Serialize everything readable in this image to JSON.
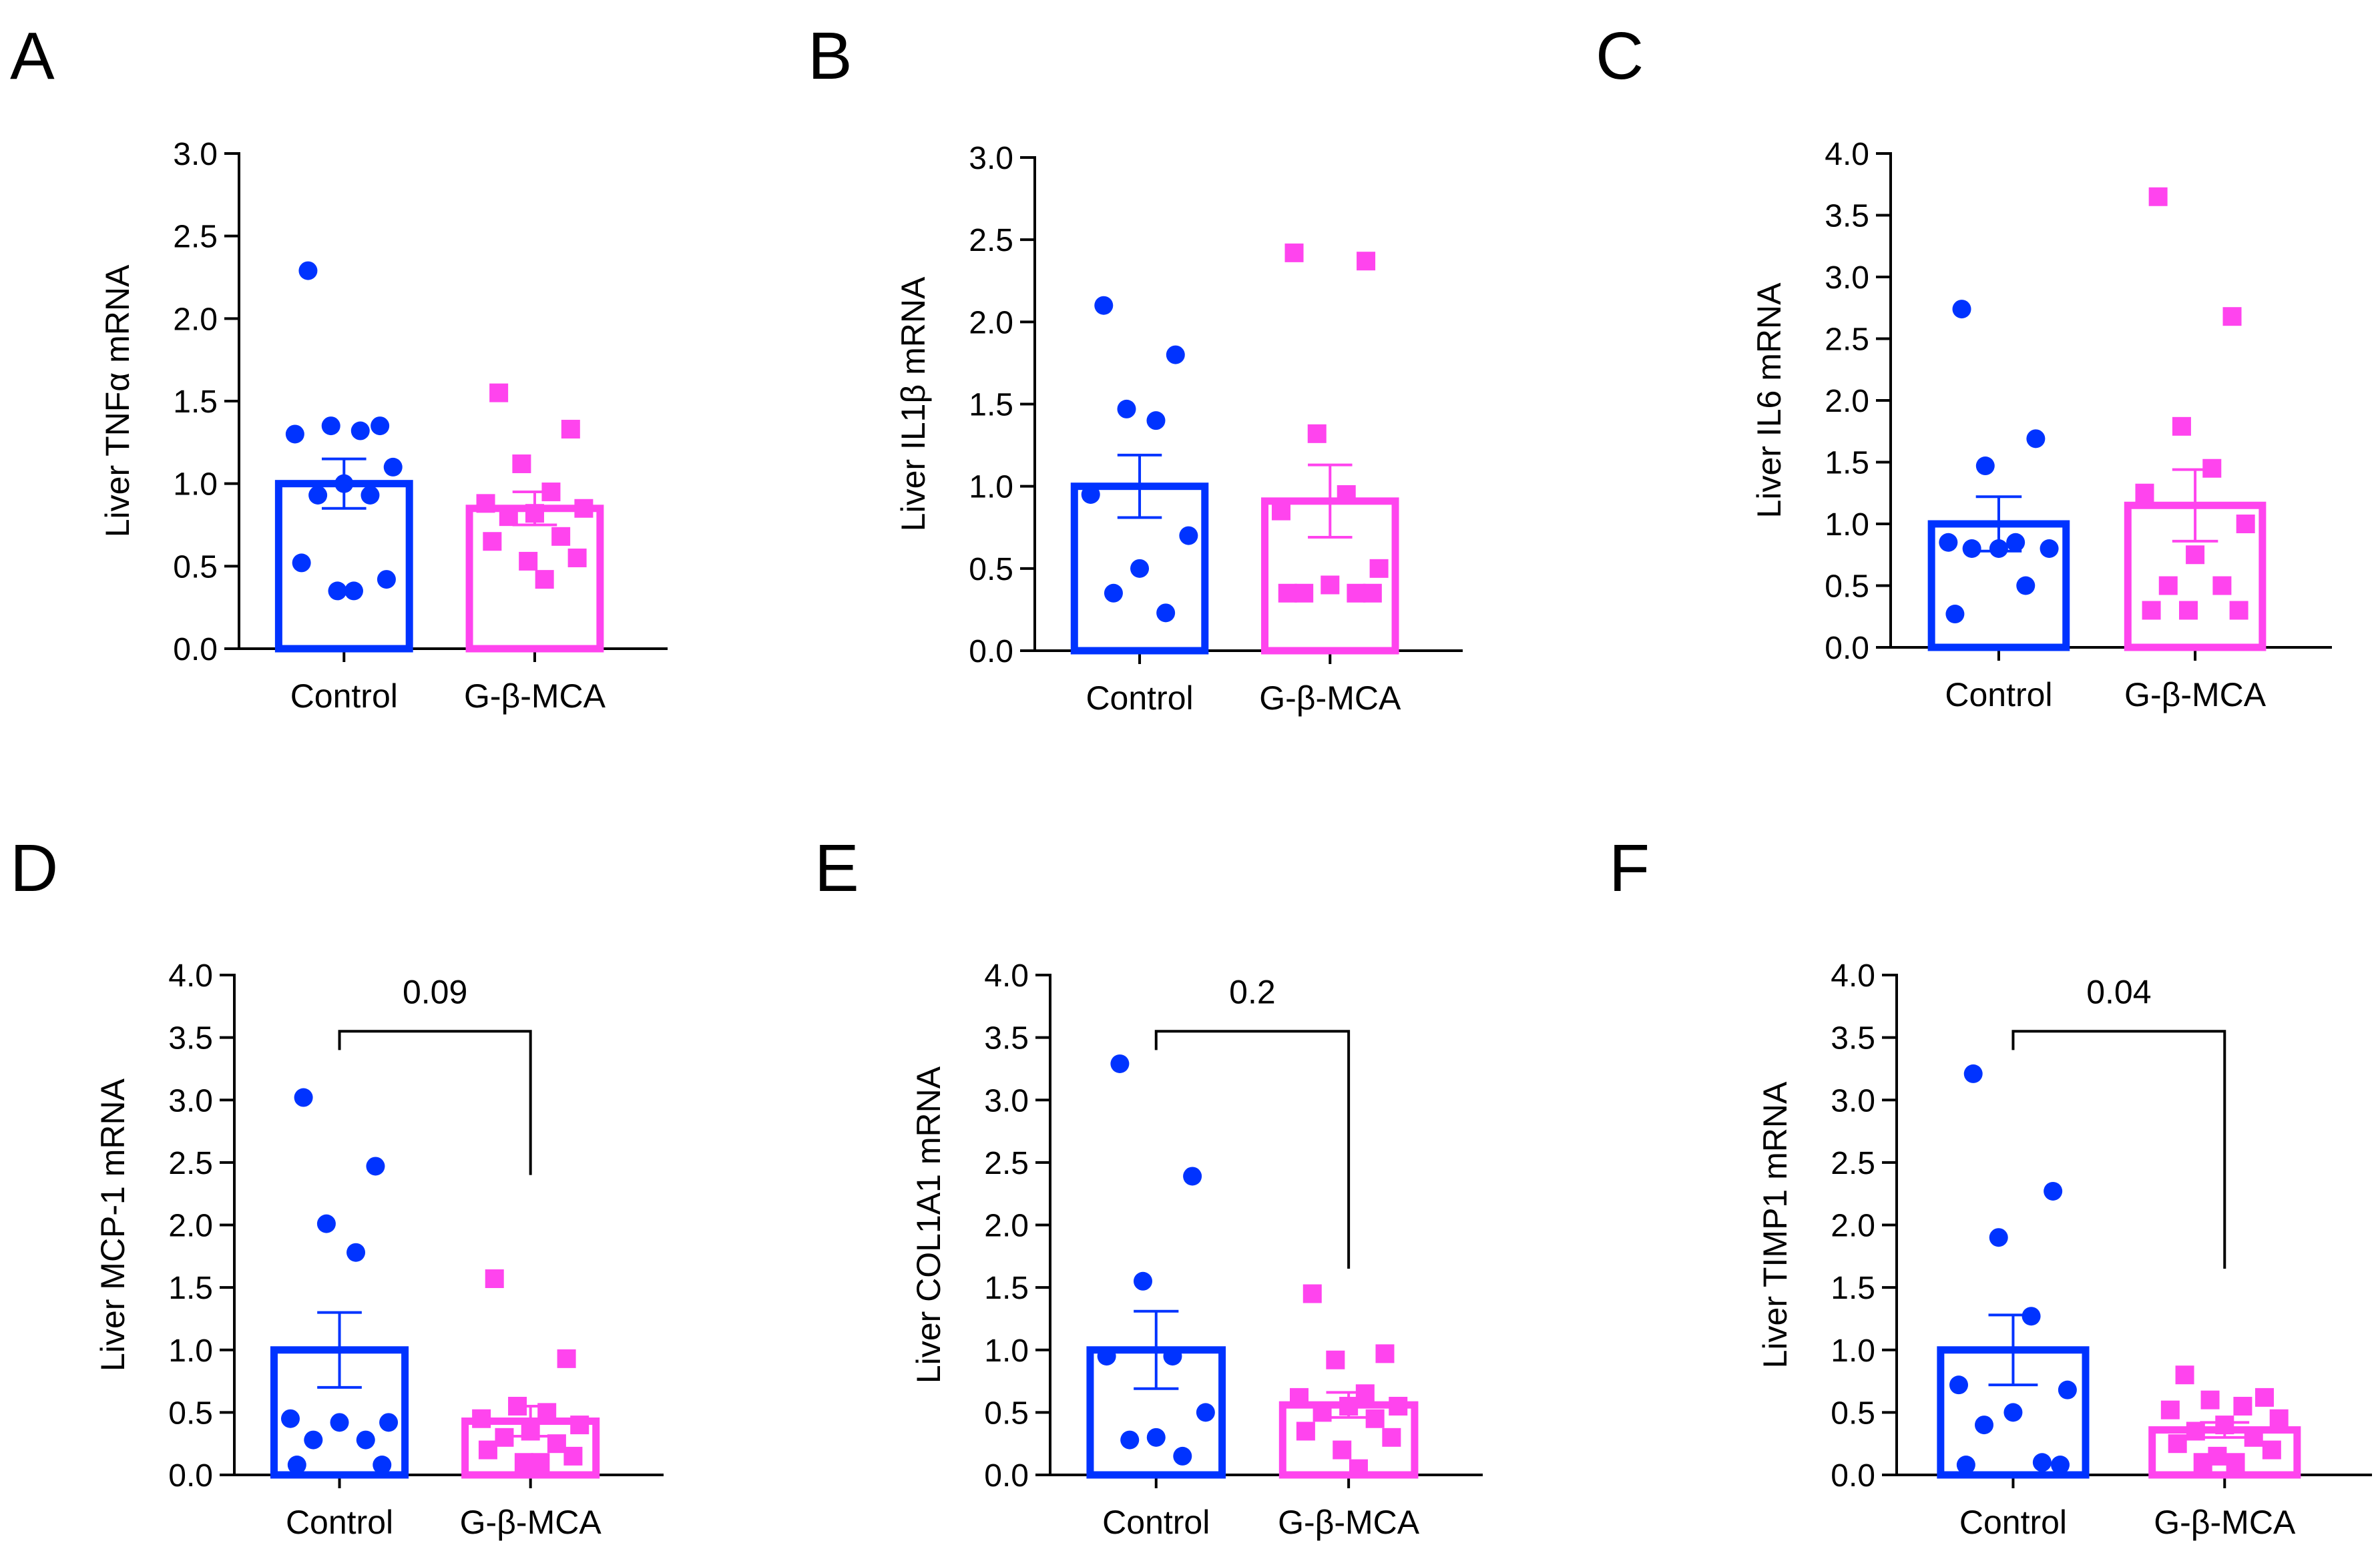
{
  "colors": {
    "control": "#0033ff",
    "treatment": "#ff44ee",
    "axis": "#000000"
  },
  "chart_data": [
    {
      "panel": "A",
      "type": "bar",
      "ylabel": "Liver TNFα mRNA",
      "ylim": [
        0,
        3.0
      ],
      "yticks": [
        "0.0",
        "0.5",
        "1.0",
        "1.5",
        "2.0",
        "2.5",
        "3.0"
      ],
      "categories": [
        "Control",
        "G-β-MCA"
      ],
      "series": [
        {
          "name": "Control",
          "marker": "circle",
          "mean": 1.0,
          "sem": 0.15,
          "points": [
            2.29,
            1.35,
            1.35,
            1.32,
            1.3,
            1.1,
            1.0,
            0.93,
            0.93,
            0.52,
            0.42,
            0.35,
            0.35
          ]
        },
        {
          "name": "G-β-MCA",
          "marker": "square",
          "mean": 0.85,
          "sem": 0.1,
          "points": [
            1.55,
            1.33,
            1.12,
            0.95,
            0.88,
            0.85,
            0.82,
            0.8,
            0.68,
            0.65,
            0.55,
            0.53,
            0.42
          ]
        }
      ],
      "annotation": null
    },
    {
      "panel": "B",
      "type": "bar",
      "ylabel": "Liver IL1β mRNA",
      "ylim": [
        0,
        3.0
      ],
      "yticks": [
        "0.0",
        "0.5",
        "1.0",
        "1.5",
        "2.0",
        "2.5",
        "3.0"
      ],
      "categories": [
        "Control",
        "G-β-MCA"
      ],
      "series": [
        {
          "name": "Control",
          "marker": "circle",
          "mean": 1.0,
          "sem": 0.19,
          "points": [
            2.1,
            1.8,
            1.47,
            1.4,
            0.95,
            0.7,
            0.5,
            0.35,
            0.23
          ]
        },
        {
          "name": "G-β-MCA",
          "marker": "square",
          "mean": 0.91,
          "sem": 0.22,
          "points": [
            2.42,
            2.37,
            1.32,
            0.95,
            0.85,
            0.5,
            0.4,
            0.35,
            0.35,
            0.35,
            0.35
          ]
        }
      ],
      "annotation": null
    },
    {
      "panel": "C",
      "type": "bar",
      "ylabel": "Liver IL6 mRNA",
      "ylim": [
        0,
        4.0
      ],
      "yticks": [
        "0.0",
        "0.5",
        "1.0",
        "1.5",
        "2.0",
        "2.5",
        "3.0",
        "3.5",
        "4.0"
      ],
      "categories": [
        "Control",
        "G-β-MCA"
      ],
      "series": [
        {
          "name": "Control",
          "marker": "circle",
          "mean": 1.0,
          "sem": 0.22,
          "points": [
            2.74,
            1.69,
            1.47,
            0.85,
            0.85,
            0.8,
            0.8,
            0.8,
            0.5,
            0.27
          ]
        },
        {
          "name": "G-β-MCA",
          "marker": "square",
          "mean": 1.15,
          "sem": 0.29,
          "points": [
            3.65,
            2.68,
            1.79,
            1.45,
            1.25,
            1.0,
            0.75,
            0.5,
            0.5,
            0.3,
            0.3,
            0.3
          ]
        }
      ],
      "annotation": null
    },
    {
      "panel": "D",
      "type": "bar",
      "ylabel": "Liver MCP-1 mRNA",
      "ylim": [
        0,
        4.0
      ],
      "yticks": [
        "0.0",
        "0.5",
        "1.0",
        "1.5",
        "2.0",
        "2.5",
        "3.0",
        "3.5",
        "4.0"
      ],
      "categories": [
        "Control",
        "G-β-MCA"
      ],
      "series": [
        {
          "name": "Control",
          "marker": "circle",
          "mean": 1.0,
          "sem": 0.3,
          "points": [
            3.02,
            2.47,
            2.01,
            1.78,
            0.45,
            0.42,
            0.42,
            0.28,
            0.28,
            0.08,
            0.08
          ]
        },
        {
          "name": "G-β-MCA",
          "marker": "square",
          "mean": 0.43,
          "sem": 0.12,
          "points": [
            1.57,
            0.93,
            0.55,
            0.5,
            0.45,
            0.4,
            0.35,
            0.3,
            0.25,
            0.2,
            0.15,
            0.1,
            0.1
          ]
        }
      ],
      "annotation": {
        "text": "0.09",
        "between": [
          0,
          1
        ],
        "y": 3.55,
        "left_drop": 3.4,
        "right_drop": 2.4
      }
    },
    {
      "panel": "E",
      "type": "bar",
      "ylabel": "Liver COL1A1 mRNA",
      "ylim": [
        0,
        4.0
      ],
      "yticks": [
        "0.0",
        "0.5",
        "1.0",
        "1.5",
        "2.0",
        "2.5",
        "3.0",
        "3.5",
        "4.0"
      ],
      "categories": [
        "Control",
        "G-β-MCA"
      ],
      "series": [
        {
          "name": "Control",
          "marker": "circle",
          "mean": 1.0,
          "sem": 0.31,
          "points": [
            3.29,
            2.39,
            1.55,
            0.95,
            0.95,
            0.5,
            0.3,
            0.28,
            0.15
          ]
        },
        {
          "name": "G-β-MCA",
          "marker": "square",
          "mean": 0.56,
          "sem": 0.1,
          "points": [
            1.45,
            0.97,
            0.92,
            0.65,
            0.62,
            0.55,
            0.55,
            0.5,
            0.45,
            0.35,
            0.3,
            0.2,
            0.05
          ]
        }
      ],
      "annotation": {
        "text": "0.2",
        "between": [
          0,
          1
        ],
        "y": 3.55,
        "left_drop": 3.4,
        "right_drop": 1.65
      }
    },
    {
      "panel": "F",
      "type": "bar",
      "ylabel": "Liver TIMP1 mRNA",
      "ylim": [
        0,
        4.0
      ],
      "yticks": [
        "0.0",
        "0.5",
        "1.0",
        "1.5",
        "2.0",
        "2.5",
        "3.0",
        "3.5",
        "4.0"
      ],
      "categories": [
        "Control",
        "G-β-MCA"
      ],
      "series": [
        {
          "name": "Control",
          "marker": "circle",
          "mean": 1.0,
          "sem": 0.28,
          "points": [
            3.21,
            2.27,
            1.9,
            1.27,
            0.72,
            0.68,
            0.5,
            0.4,
            0.1,
            0.08,
            0.08
          ]
        },
        {
          "name": "G-β-MCA",
          "marker": "square",
          "mean": 0.36,
          "sem": 0.06,
          "points": [
            0.8,
            0.62,
            0.6,
            0.55,
            0.52,
            0.45,
            0.4,
            0.35,
            0.3,
            0.25,
            0.2,
            0.15,
            0.1,
            0.1
          ]
        }
      ],
      "annotation": {
        "text": "0.04",
        "between": [
          0,
          1
        ],
        "y": 3.55,
        "left_drop": 3.4,
        "right_drop": 1.65
      }
    }
  ]
}
